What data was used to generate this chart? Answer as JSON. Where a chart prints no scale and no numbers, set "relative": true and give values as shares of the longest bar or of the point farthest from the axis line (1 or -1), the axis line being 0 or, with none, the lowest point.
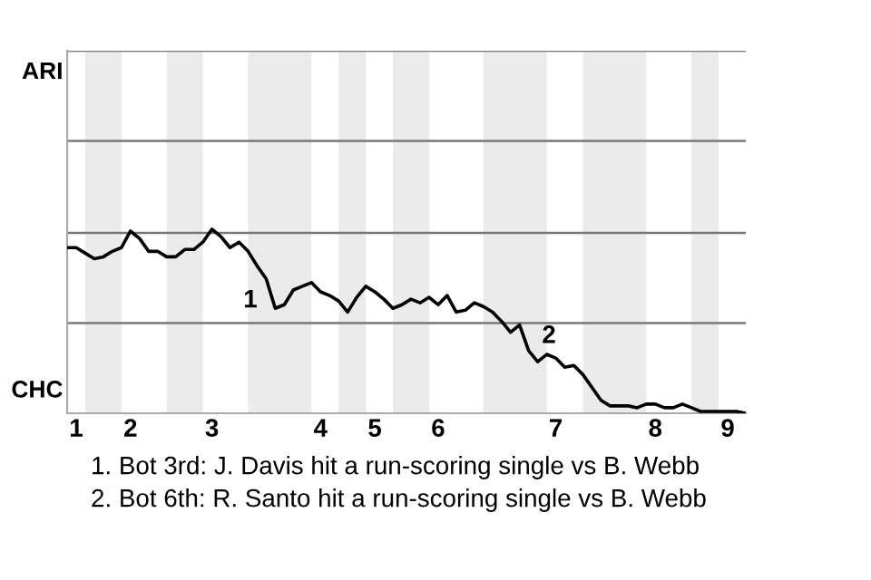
{
  "chart_data": {
    "type": "line",
    "relative": true,
    "categories": [
      null,
      "1",
      null,
      null,
      null,
      null,
      null,
      "2",
      null,
      null,
      null,
      null,
      null,
      null,
      null,
      null,
      "3",
      null,
      null,
      null,
      null,
      null,
      null,
      null,
      null,
      null,
      null,
      null,
      "4",
      null,
      null,
      null,
      null,
      null,
      "5",
      null,
      null,
      null,
      null,
      null,
      null,
      "6",
      null,
      null,
      null,
      null,
      null,
      null,
      null,
      null,
      null,
      null,
      null,
      null,
      "7",
      null,
      null,
      null,
      null,
      null,
      null,
      null,
      null,
      null,
      null,
      "8",
      null,
      null,
      null,
      null,
      null,
      null,
      null,
      "9",
      null,
      null
    ],
    "series": [
      {
        "color": "#000000",
        "values": [
          0.9,
          0.9,
          0.87,
          0.84,
          0.85,
          0.88,
          0.9,
          0.99,
          0.95,
          0.88,
          0.88,
          0.85,
          0.85,
          0.89,
          0.89,
          0.93,
          1,
          0.96,
          0.9,
          0.93,
          0.88,
          0.8,
          0.73,
          0.57,
          0.59,
          0.67,
          0.69,
          0.71,
          0.66,
          0.64,
          0.61,
          0.55,
          0.63,
          0.69,
          0.66,
          0.62,
          0.57,
          0.59,
          0.62,
          0.6,
          0.63,
          0.59,
          0.64,
          0.55,
          0.56,
          0.6,
          0.58,
          0.55,
          0.5,
          0.44,
          0.48,
          0.34,
          0.28,
          0.32,
          0.3,
          0.25,
          0.26,
          0.21,
          0.14,
          0.07,
          0.04,
          0.04,
          0.04,
          0.03,
          0.05,
          0.05,
          0.03,
          0.03,
          0.05,
          0.03,
          0.01,
          0.01,
          0.01,
          0.01,
          0.01,
          0
        ]
      }
    ],
    "ref_lines": [
      {
        "axis": "y",
        "value": 0.49,
        "color": "#777777"
      },
      {
        "axis": "y",
        "value": 0.98,
        "color": "#777777"
      },
      {
        "axis": "y",
        "value": 1.48,
        "color": "#777777"
      },
      {
        "axis": "y",
        "value": 1.97,
        "color": "#777777"
      }
    ],
    "marker": "none",
    "line_style": "solid",
    "annotations": [
      "ARI",
      "CHC",
      "1",
      "2",
      "1. Bot 3rd: J. Davis hit a run-scoring single vs B. Webb",
      "2. Bot 6th: R. Santo hit a run-scoring single vs B. Webb"
    ]
  }
}
